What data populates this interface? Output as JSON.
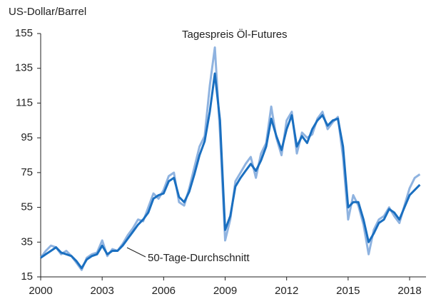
{
  "chart_data": {
    "type": "line",
    "y_axis_label": "US-Dollar/Barrel",
    "x": [
      2000,
      2000.25,
      2000.5,
      2000.75,
      2001,
      2001.25,
      2001.5,
      2001.75,
      2002,
      2002.25,
      2002.5,
      2002.75,
      2003,
      2003.25,
      2003.5,
      2003.75,
      2004,
      2004.25,
      2004.5,
      2004.75,
      2005,
      2005.25,
      2005.5,
      2005.75,
      2006,
      2006.25,
      2006.5,
      2006.75,
      2007,
      2007.25,
      2007.5,
      2007.75,
      2008,
      2008.25,
      2008.5,
      2008.75,
      2009,
      2009.25,
      2009.5,
      2009.75,
      2010,
      2010.25,
      2010.5,
      2010.75,
      2011,
      2011.25,
      2011.5,
      2011.75,
      2012,
      2012.25,
      2012.5,
      2012.75,
      2013,
      2013.25,
      2013.5,
      2013.75,
      2014,
      2014.25,
      2014.5,
      2014.75,
      2015,
      2015.25,
      2015.5,
      2015.75,
      2016,
      2016.25,
      2016.5,
      2016.75,
      2017,
      2017.25,
      2017.5,
      2017.75,
      2018,
      2018.25,
      2018.5
    ],
    "series": [
      {
        "name": "Tagespreis Öl-Futures",
        "color": "#8fb3e0",
        "values": [
          26,
          30,
          33,
          32,
          28,
          30,
          27,
          23,
          19,
          26,
          28,
          29,
          36,
          27,
          31,
          30,
          34,
          39,
          43,
          48,
          47,
          55,
          63,
          60,
          65,
          73,
          75,
          58,
          56,
          66,
          78,
          90,
          96,
          125,
          147,
          98,
          36,
          48,
          70,
          75,
          80,
          84,
          72,
          86,
          92,
          113,
          95,
          85,
          105,
          110,
          86,
          98,
          95,
          97,
          106,
          110,
          100,
          104,
          107,
          84,
          48,
          62,
          56,
          45,
          28,
          42,
          48,
          50,
          55,
          50,
          46,
          56,
          66,
          72,
          74
        ]
      },
      {
        "name": "50-Tage-Durchschnitt",
        "color": "#1a6fc0",
        "values": [
          26,
          28,
          30,
          32,
          29,
          28,
          27,
          24,
          20,
          25,
          27,
          28,
          33,
          28,
          30,
          30,
          33,
          37,
          41,
          45,
          48,
          52,
          60,
          62,
          63,
          70,
          72,
          61,
          58,
          64,
          74,
          85,
          93,
          110,
          132,
          105,
          42,
          50,
          67,
          72,
          76,
          80,
          76,
          82,
          90,
          106,
          96,
          88,
          100,
          108,
          90,
          96,
          92,
          100,
          105,
          108,
          102,
          105,
          106,
          90,
          55,
          58,
          58,
          48,
          35,
          40,
          46,
          48,
          54,
          52,
          48,
          55,
          62,
          65,
          68
        ]
      }
    ],
    "xlim": [
      2000,
      2018.8
    ],
    "xticks": [
      2000,
      2003,
      2006,
      2009,
      2012,
      2015,
      2018
    ],
    "ylim": [
      15,
      155
    ],
    "yticks": [
      15,
      35,
      55,
      75,
      95,
      115,
      135,
      155
    ],
    "grid": false
  }
}
